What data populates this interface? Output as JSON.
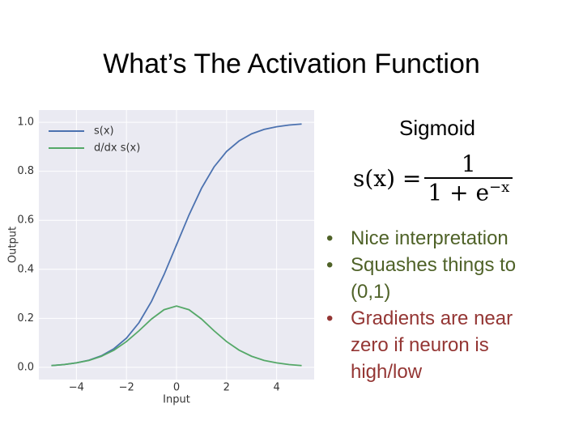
{
  "title": "What’s The Activation Function",
  "panel": {
    "heading": "Sigmoid",
    "formula": {
      "lhs": "s(x) =",
      "numerator": "1",
      "denominator": "1 + e",
      "exponent": "−x"
    },
    "bullets": [
      "Nice interpretation",
      "Squashes things to (0,1)",
      "Gradients are near zero if neuron is high/low"
    ]
  },
  "chart_data": {
    "type": "line",
    "x": [
      -5,
      -4.5,
      -4,
      -3.5,
      -3,
      -2.5,
      -2,
      -1.5,
      -1,
      -0.5,
      0,
      0.5,
      1,
      1.5,
      2,
      2.5,
      3,
      3.5,
      4,
      4.5,
      5
    ],
    "series": [
      {
        "name": "s(x)",
        "color": "#4c72b0",
        "values": [
          0.007,
          0.011,
          0.018,
          0.029,
          0.047,
          0.076,
          0.119,
          0.182,
          0.269,
          0.378,
          0.5,
          0.622,
          0.731,
          0.818,
          0.881,
          0.924,
          0.953,
          0.971,
          0.982,
          0.989,
          0.993
        ]
      },
      {
        "name": "d/dx s(x)",
        "color": "#55a868",
        "values": [
          0.007,
          0.011,
          0.018,
          0.028,
          0.045,
          0.07,
          0.105,
          0.149,
          0.197,
          0.235,
          0.25,
          0.235,
          0.197,
          0.149,
          0.105,
          0.07,
          0.045,
          0.028,
          0.018,
          0.011,
          0.007
        ]
      }
    ],
    "x_label": "Input",
    "y_label": "Output",
    "xlim": [
      -5.5,
      5.5
    ],
    "ylim": [
      -0.05,
      1.05
    ],
    "xticks": [
      {
        "value": -4,
        "label": "−4"
      },
      {
        "value": -2,
        "label": "−2"
      },
      0,
      2,
      4
    ],
    "yticks": [
      {
        "value": 0,
        "label": "0.0"
      },
      0.2,
      0.4,
      0.6,
      0.8,
      {
        "value": 1,
        "label": "1.0"
      }
    ],
    "grid": true,
    "legend": "upper left"
  }
}
